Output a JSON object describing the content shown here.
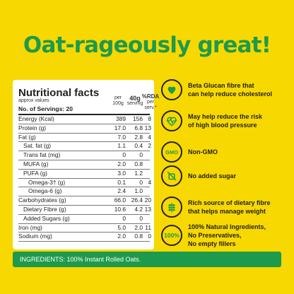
{
  "headline": "Oat-rageously great!",
  "nutrition": {
    "title": "Nutritional facts",
    "subtitle": "approx values",
    "servings": "No. of Servings: 20",
    "col_per100": [
      "per",
      "100g"
    ],
    "col_serving": [
      "40g",
      "serving"
    ],
    "col_rda": [
      "%RDA",
      "per",
      "serv.*"
    ],
    "rows": [
      {
        "label": "Energy (Kcal)",
        "v1": "389",
        "v2": "156",
        "v3": "8"
      },
      {
        "label": "Protein (g)",
        "v1": "17.0",
        "v2": "6.8",
        "v3": "13"
      },
      {
        "label": "Fat (g)",
        "v1": "7.0",
        "v2": "2.8",
        "v3": "4"
      },
      {
        "label": "Sat. fat (g)",
        "v1": "1.1",
        "v2": "0.4",
        "v3": "2"
      },
      {
        "label": "Trans fat (mg)",
        "v1": "0",
        "v2": "0",
        "v3": ""
      },
      {
        "label": "MUFA (g)",
        "v1": "2.0",
        "v2": "0.8",
        "v3": ""
      },
      {
        "label": "PUFA (g)",
        "v1": "3.0",
        "v2": "1.2",
        "v3": ""
      },
      {
        "label": "Omega-3† (g)",
        "v1": "0.1",
        "v2": "0",
        "v3": "4"
      },
      {
        "label": "Omega-6 (g)",
        "v1": "2.4",
        "v2": "1.0",
        "v3": ""
      },
      {
        "label": "Carbohydrates (g)",
        "v1": "66.0",
        "v2": "26.4",
        "v3": "20"
      },
      {
        "label": "Dietary Fibre (g)",
        "v1": "10.6",
        "v2": "4.2",
        "v3": "13"
      },
      {
        "label": "Added Sugars (g)",
        "v1": "0",
        "v2": "0",
        "v3": ""
      },
      {
        "label": "Iron (mg)",
        "v1": "5.0",
        "v2": "2.0",
        "v3": "11"
      },
      {
        "label": "Sodium (mg)",
        "v1": "2.0",
        "v2": "0.8",
        "v3": "0"
      }
    ]
  },
  "ingredients": "INGREDIENTS: 100% Instant Rolled Oats.",
  "features": [
    {
      "icon": "heart-icon",
      "lines": [
        "Beta Glucan fibre that",
        "can help reduce cholesterol"
      ]
    },
    {
      "icon": "heartbeat-icon",
      "lines": [
        "May help reduce the risk",
        "of high blood pressure"
      ]
    },
    {
      "icon": "gmo-icon",
      "icon_text": "GMO",
      "lines": [
        "Non-GMO"
      ]
    },
    {
      "icon": "no-sugar-icon",
      "lines": [
        "No added sugar"
      ]
    },
    {
      "icon": "wheat-icon",
      "lines": [
        "Rich source of dietary fibre",
        "that helps manage weight"
      ]
    },
    {
      "icon": "natural-100-icon",
      "icon_text": "100%",
      "lines": [
        "100% Natural Ingredients,",
        "No Preservatives,",
        "No empty fillers"
      ]
    }
  ]
}
